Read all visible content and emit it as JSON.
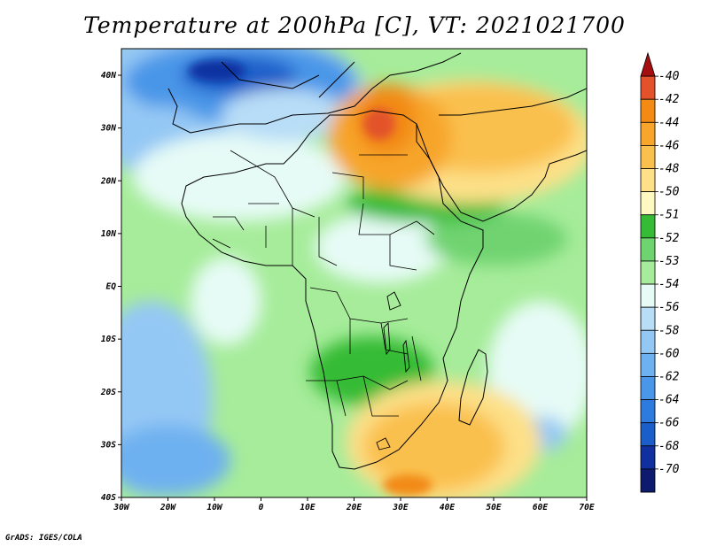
{
  "title": "Temperature at 200hPa [C], VT: 2021021700",
  "footer": "GrADS: IGES/COLA",
  "map": {
    "lon_range": [
      -30,
      75
    ],
    "lat_range": [
      -40,
      45
    ],
    "lon_ticks": [
      "30W",
      "20W",
      "10W",
      "0",
      "10E",
      "20E",
      "30E",
      "40E",
      "50E",
      "60E",
      "70E"
    ],
    "lat_ticks": [
      "40N",
      "30N",
      "20N",
      "10N",
      "EQ",
      "10S",
      "20S",
      "30S",
      "40S"
    ]
  },
  "colorbar": {
    "levels": [
      {
        "label": "-40",
        "color": "#a50f0f"
      },
      {
        "label": "-42",
        "color": "#e3522b"
      },
      {
        "label": "-44",
        "color": "#f28a14"
      },
      {
        "label": "-46",
        "color": "#f7a52b"
      },
      {
        "label": "-48",
        "color": "#fac04e"
      },
      {
        "label": "-50",
        "color": "#fde088"
      },
      {
        "label": "-51",
        "color": "#fff8c1"
      },
      {
        "label": "-52",
        "color": "#36bb36"
      },
      {
        "label": "-53",
        "color": "#6fd36f"
      },
      {
        "label": "-54",
        "color": "#a6ec9a"
      },
      {
        "label": "-56",
        "color": "#e6fbf6"
      },
      {
        "label": "-58",
        "color": "#b8ddf7"
      },
      {
        "label": "-60",
        "color": "#94c8f4"
      },
      {
        "label": "-62",
        "color": "#6eb1f0"
      },
      {
        "label": "-64",
        "color": "#4a96e8"
      },
      {
        "label": "-66",
        "color": "#2e7be0"
      },
      {
        "label": "-68",
        "color": "#1c5ec9"
      },
      {
        "label": "-70",
        "color": "#1130a0"
      }
    ],
    "low_end_color": "#0d1a6e",
    "under_color": "#e6e0ff"
  }
}
